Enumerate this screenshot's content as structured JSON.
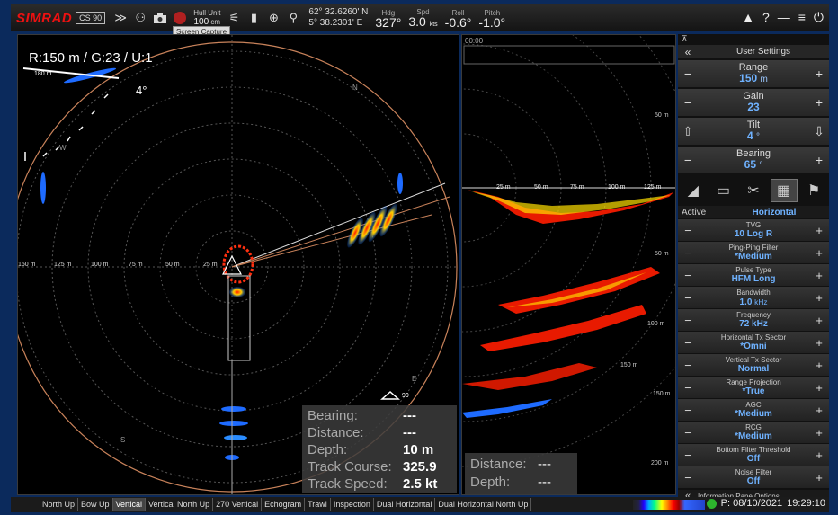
{
  "topbar": {
    "brand": "SIMRAD",
    "model": "CS 90",
    "hull_label": "Hull Unit",
    "hull_value": "100",
    "hull_unit": "cm",
    "lat": "62° 32.6260' N",
    "lon": "5° 38.2301' E",
    "hdg_label": "Hdg",
    "hdg": "327°",
    "spd_label": "Spd",
    "spd": "3.0",
    "spd_unit": "kts",
    "roll_label": "Roll",
    "roll": "-0.6°",
    "pitch_label": "Pitch",
    "pitch": "-1.0°",
    "tooltip": "Screen Capture"
  },
  "horizontal": {
    "info": "R:150 m / G:23 / U:1",
    "tilt": "4°",
    "scale_label": "180 m",
    "north": "N",
    "east": "E",
    "south": "S",
    "west": "W",
    "range_labels": [
      "150 m",
      "125 m",
      "100 m",
      "75 m",
      "50 m",
      "25 m"
    ],
    "readout": [
      {
        "k": "Bearing:",
        "v": "---"
      },
      {
        "k": "Distance:",
        "v": "---"
      },
      {
        "k": "Depth:",
        "v": "10 m"
      },
      {
        "k": "Track Course:",
        "v": "325.9"
      },
      {
        "k": "Track Speed:",
        "v": "2.5 kt"
      }
    ],
    "marker_label": "99"
  },
  "vertical": {
    "ticker_label": "00:00",
    "range_labels": [
      "25 m",
      "50 m",
      "75 m",
      "100 m",
      "125 m"
    ],
    "depth_labels": [
      "50 m",
      "50 m",
      "100 m",
      "150 m",
      "150 m",
      "200 m"
    ],
    "readout": [
      {
        "k": "Distance:",
        "v": "---"
      },
      {
        "k": "Depth:",
        "v": "---"
      }
    ]
  },
  "side": {
    "user_settings": "User Settings",
    "settings": [
      {
        "label": "Range",
        "value": "150",
        "unit": "m"
      },
      {
        "label": "Gain",
        "value": "23",
        "unit": ""
      },
      {
        "label": "Tilt",
        "value": "4",
        "unit": "°"
      },
      {
        "label": "Bearing",
        "value": "65",
        "unit": "°"
      }
    ],
    "active_label": "Active",
    "active_value": "Horizontal",
    "params": [
      {
        "label": "TVG",
        "value": "10 Log R"
      },
      {
        "label": "Ping-Ping Filter",
        "value": "*Medium"
      },
      {
        "label": "Pulse Type",
        "value": "HFM Long"
      },
      {
        "label": "Bandwidth",
        "value": "1.0",
        "unit": "kHz"
      },
      {
        "label": "Frequency",
        "value": "72 kHz"
      },
      {
        "label": "Horizontal Tx Sector",
        "value": "*Omni"
      },
      {
        "label": "Vertical Tx Sector",
        "value": "Normal"
      },
      {
        "label": "Range Projection",
        "value": "*True"
      },
      {
        "label": "AGC",
        "value": "*Medium"
      },
      {
        "label": "RCG",
        "value": "*Medium"
      },
      {
        "label": "Bottom Filter Threshold",
        "value": "Off"
      },
      {
        "label": "Noise Filter",
        "value": "Off"
      }
    ],
    "footer": "Information Pane Options"
  },
  "bottombar": {
    "modes": [
      "North Up",
      "Bow Up",
      "Vertical",
      "Vertical North Up",
      "270 Vertical",
      "Echogram",
      "Trawl",
      "Inspection",
      "Dual Horizontal",
      "Dual Horizontal North Up"
    ],
    "active_mode": "Vertical",
    "status": "P: 08/10/2021",
    "time": "19:29:10"
  }
}
